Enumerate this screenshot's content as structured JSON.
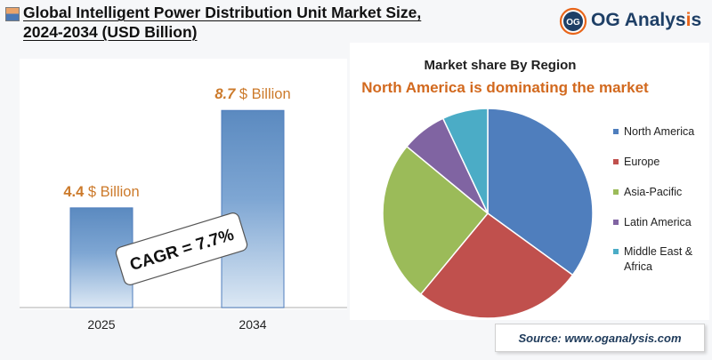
{
  "header": {
    "title_line1": "Global Intelligent Power Distribution Unit Market Size,",
    "title_line2": "2024-2034 (USD Billion)",
    "logo_badge": "OG",
    "logo_text": "OG Analysis"
  },
  "colors": {
    "bar_top": "#5b8ac0",
    "bar_bottom": "#dce8f4",
    "value_label": "#cc7a2b",
    "pie_subtitle": "#d2691e"
  },
  "chart_data": [
    {
      "type": "bar",
      "categories": [
        "2025",
        "2034"
      ],
      "values": [
        4.4,
        8.7
      ],
      "data_labels": [
        "4.4 $ Billion",
        "8.7 $ Billion"
      ],
      "annotation": "CAGR = 7.7%",
      "ylim": [
        0,
        10.2
      ],
      "grid": false
    },
    {
      "type": "pie",
      "title": "Market share By Region",
      "subtitle": "North America is dominating the market",
      "labels": [
        "North America",
        "Europe",
        "Asia-Pacific",
        "Latin America",
        "Middle East & Africa"
      ],
      "values": [
        35,
        26,
        25,
        7,
        7
      ],
      "colors": [
        "#4f7ebd",
        "#c0504d",
        "#9bbb59",
        "#8064a2",
        "#4bacc6"
      ],
      "legend_position": "right"
    }
  ],
  "source": "Source: www.oganalysis.com"
}
